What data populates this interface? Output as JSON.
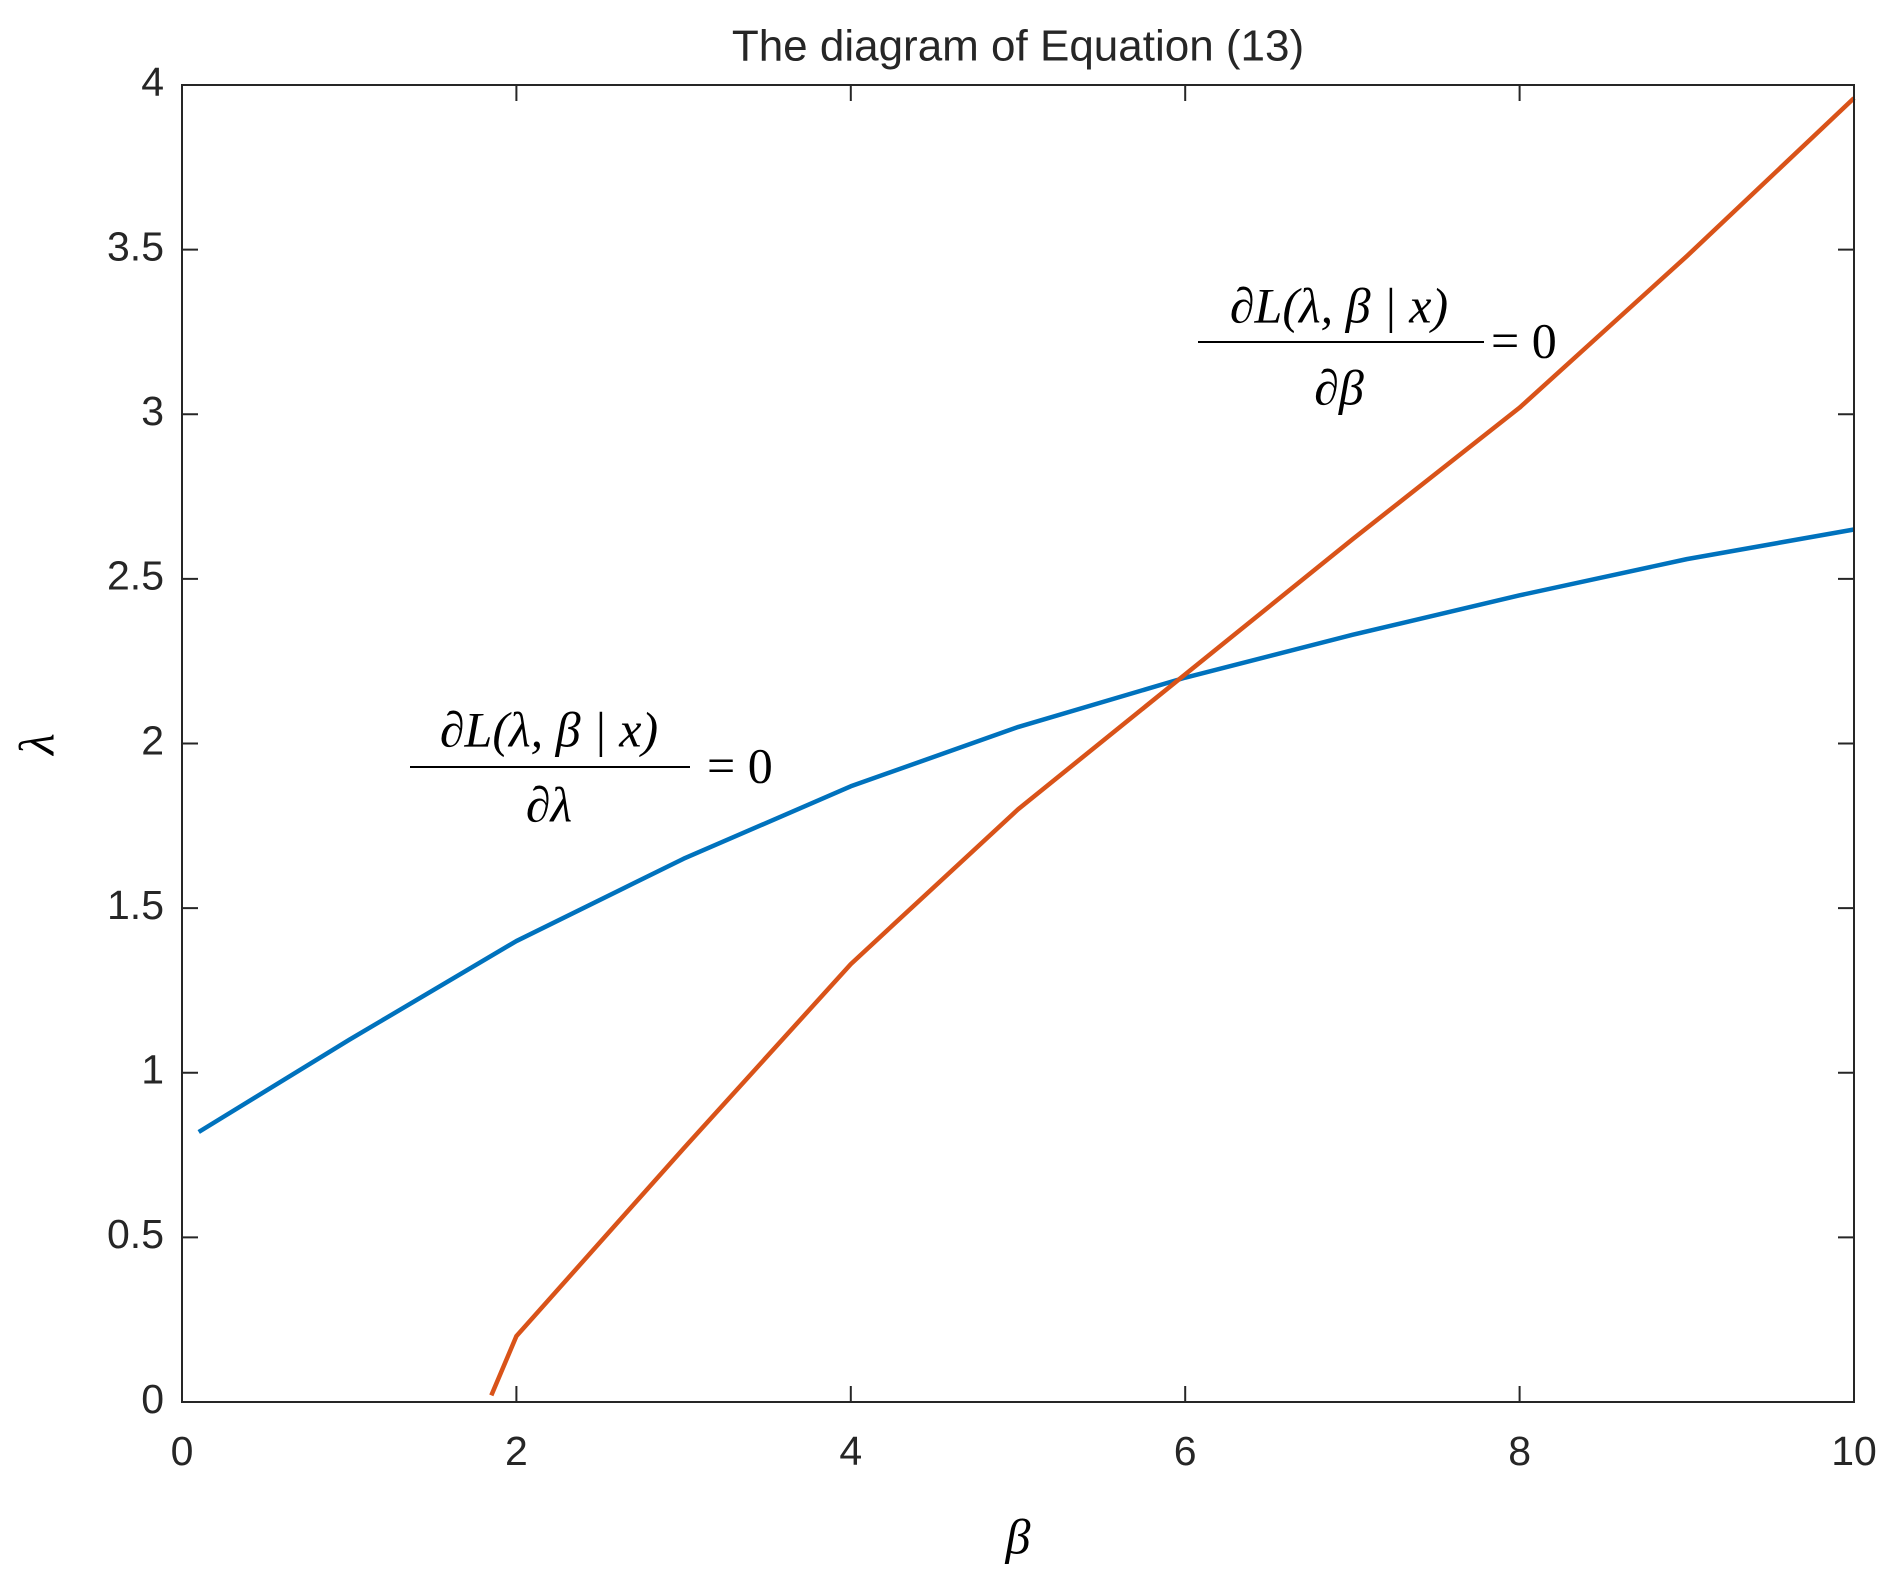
{
  "chart_data": {
    "type": "line",
    "title": "The diagram of Equation (13)",
    "x_label": "β",
    "y_label": "λ",
    "xlim": [
      0,
      10
    ],
    "xticks": [
      0,
      2,
      4,
      6,
      8,
      10
    ],
    "ylim": [
      0,
      4
    ],
    "yticks": [
      0,
      0.5,
      1,
      1.5,
      2,
      2.5,
      3,
      3.5,
      4
    ],
    "grid": false,
    "series": [
      {
        "color": "#0072BD",
        "x": [
          0.1,
          1,
          2,
          3,
          4,
          5,
          6,
          7,
          8,
          9,
          10
        ],
        "values": [
          0.82,
          1.1,
          1.4,
          1.65,
          1.87,
          2.05,
          2.2,
          2.33,
          2.45,
          2.56,
          2.65
        ]
      },
      {
        "color": "#D95319",
        "x": [
          1.85,
          2,
          3,
          4,
          5,
          6,
          7,
          8,
          9,
          10
        ],
        "values": [
          0.02,
          0.2,
          0.77,
          1.33,
          1.8,
          2.21,
          2.62,
          3.02,
          3.48,
          3.96
        ]
      }
    ],
    "annotations": [
      {
        "numerator": "∂L(λ, β | x)",
        "denominator": "∂λ",
        "rhs": "= 0"
      },
      {
        "numerator": "∂L(λ, β | x)",
        "denominator": "∂β",
        "rhs": "= 0"
      }
    ]
  }
}
